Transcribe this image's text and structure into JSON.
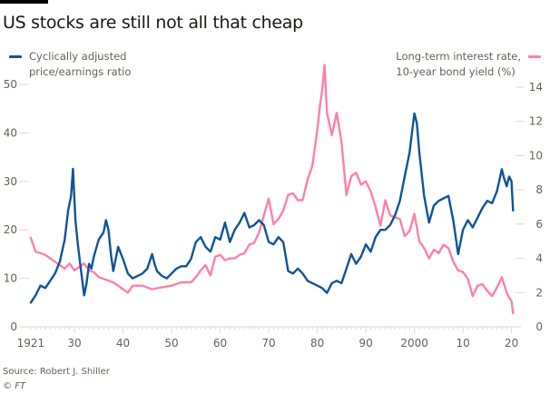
{
  "header": {
    "title": "US stocks are still not all that cheap"
  },
  "legend": {
    "left_label_line1": "Cyclically adjusted",
    "left_label_line2": "price/earnings ratio",
    "right_label_line1": "Long-term interest rate,",
    "right_label_line2": "10-year bond yield (%)"
  },
  "footer": {
    "source": "Source: Robert J. Shiller",
    "copyright_symbol": "©",
    "copyright_org": "FT"
  },
  "colors": {
    "cape": "#0f5499",
    "yield": "#ff7faa",
    "axis": "#e0d6cc",
    "text": "#66605c"
  },
  "chart_data": {
    "type": "line",
    "title": "US stocks are still not all that cheap",
    "xlabel": "",
    "ylabel_left": "Cyclically adjusted price/earnings ratio",
    "ylabel_right": "Long-term interest rate, 10-year bond yield (%)",
    "xlim": [
      1920,
      2021
    ],
    "ylim_left": [
      0,
      50
    ],
    "ylim_right": [
      0,
      14
    ],
    "grid": false,
    "legend_placement": "top-left and top-right",
    "x_tick_values": [
      1921,
      1930,
      1940,
      1950,
      1960,
      1970,
      1980,
      1990,
      2000,
      2010,
      2020
    ],
    "x_tick_labels": [
      "1921",
      "30",
      "40",
      "50",
      "60",
      "70",
      "80",
      "90",
      "2000",
      "10",
      "20"
    ],
    "y_left_ticks": [
      0,
      10,
      20,
      30,
      40,
      50
    ],
    "y_left_tick_labels": [
      "0",
      "10",
      "20",
      "30",
      "40",
      "50"
    ],
    "y_right_ticks": [
      0,
      2,
      4,
      6,
      8,
      10,
      12,
      14
    ],
    "y_right_tick_labels": [
      "0",
      "2",
      "4",
      "6",
      "8",
      "10",
      "12",
      "14"
    ],
    "series": [
      {
        "name": "Cyclically adjusted price/earnings ratio",
        "axis": "left",
        "x": [
          1921,
          1922,
          1923,
          1924,
          1925,
          1926,
          1927,
          1928,
          1928.7,
          1929.3,
          1929.7,
          1930.2,
          1930.7,
          1931.3,
          1932,
          1932.5,
          1933,
          1933.5,
          1934,
          1935,
          1936,
          1936.5,
          1937,
          1937.5,
          1938,
          1938.5,
          1939,
          1940,
          1941,
          1942,
          1943,
          1944,
          1945,
          1946,
          1946.5,
          1947,
          1948,
          1949,
          1950,
          1951,
          1952,
          1953,
          1954,
          1955,
          1956,
          1957,
          1958,
          1959,
          1960,
          1961,
          1962,
          1963,
          1964,
          1965,
          1966,
          1967,
          1968,
          1969,
          1970,
          1971,
          1972,
          1973,
          1974,
          1975,
          1976,
          1977,
          1978,
          1979,
          1980,
          1981,
          1982,
          1983,
          1984,
          1985,
          1986,
          1987,
          1988,
          1989,
          1990,
          1991,
          1992,
          1993,
          1994,
          1995,
          1996,
          1997,
          1998,
          1999,
          1999.5,
          2000,
          2000.5,
          2001,
          2002,
          2003,
          2004,
          2005,
          2006,
          2007,
          2008,
          2009,
          2010,
          2011,
          2012,
          2013,
          2014,
          2015,
          2016,
          2017,
          2018,
          2018.5,
          2019,
          2019.5,
          2020,
          2020.3
        ],
        "values": [
          5.0,
          6.5,
          8.5,
          8.0,
          9.5,
          11.0,
          13.5,
          18.0,
          24.0,
          27.0,
          32.6,
          22.0,
          17.0,
          12.0,
          6.5,
          9.0,
          13.0,
          12.0,
          14.5,
          18.0,
          19.5,
          22.0,
          20.0,
          15.0,
          11.5,
          14.0,
          16.5,
          14.0,
          11.0,
          10.0,
          10.5,
          11.0,
          12.0,
          15.0,
          13.0,
          11.5,
          10.5,
          10.0,
          11.0,
          12.0,
          12.5,
          12.5,
          14.0,
          17.5,
          18.5,
          16.5,
          15.5,
          18.5,
          18.0,
          21.5,
          17.5,
          20.0,
          21.5,
          23.5,
          20.5,
          21.0,
          22.0,
          21.0,
          17.5,
          17.0,
          18.5,
          17.5,
          11.5,
          11.0,
          12.0,
          11.0,
          9.5,
          9.0,
          8.5,
          8.0,
          7.0,
          9.0,
          9.5,
          9.0,
          12.0,
          15.0,
          13.0,
          14.5,
          17.0,
          15.5,
          18.5,
          20.0,
          20.0,
          21.0,
          23.0,
          26.0,
          31.0,
          36.0,
          40.0,
          44.0,
          42.0,
          36.0,
          27.0,
          21.5,
          25.0,
          26.0,
          26.5,
          27.0,
          22.0,
          15.0,
          20.0,
          22.0,
          20.5,
          22.5,
          24.5,
          26.0,
          25.5,
          28.0,
          32.5,
          30.5,
          29.0,
          31.0,
          30.0,
          24.0
        ]
      },
      {
        "name": "Long-term interest rate, 10-year bond yield (%)",
        "axis": "right",
        "x": [
          1921,
          1922,
          1923,
          1924,
          1925,
          1926,
          1927,
          1928,
          1929,
          1930,
          1931,
          1932,
          1933,
          1934,
          1935,
          1936,
          1937,
          1938,
          1939,
          1940,
          1941,
          1942,
          1944,
          1946,
          1948,
          1950,
          1952,
          1954,
          1955,
          1956,
          1957,
          1958,
          1959,
          1960,
          1961,
          1962,
          1963,
          1964,
          1965,
          1966,
          1967,
          1968,
          1969,
          1970,
          1971,
          1972,
          1973,
          1974,
          1975,
          1976,
          1977,
          1978,
          1979,
          1980,
          1980.5,
          1981,
          1981.5,
          1982,
          1983,
          1984,
          1985,
          1986,
          1987,
          1988,
          1989,
          1990,
          1991,
          1992,
          1993,
          1994,
          1995,
          1996,
          1997,
          1998,
          1999,
          2000,
          2001,
          2002,
          2003,
          2004,
          2005,
          2006,
          2007,
          2008,
          2009,
          2010,
          2011,
          2012,
          2013,
          2014,
          2015,
          2016,
          2017,
          2018,
          2019,
          2019.5,
          2020,
          2020.3
        ],
        "values": [
          5.2,
          4.4,
          4.3,
          4.2,
          4.0,
          3.8,
          3.6,
          3.4,
          3.7,
          3.3,
          3.5,
          3.7,
          3.3,
          3.2,
          2.9,
          2.8,
          2.7,
          2.6,
          2.4,
          2.2,
          2.0,
          2.4,
          2.4,
          2.2,
          2.3,
          2.4,
          2.6,
          2.6,
          2.9,
          3.3,
          3.6,
          3.0,
          4.1,
          4.2,
          3.9,
          4.0,
          4.0,
          4.2,
          4.3,
          4.8,
          4.9,
          5.5,
          6.5,
          7.5,
          6.0,
          6.3,
          6.8,
          7.7,
          7.8,
          7.4,
          7.4,
          8.6,
          9.4,
          11.5,
          12.8,
          13.8,
          15.3,
          12.5,
          11.2,
          12.5,
          10.8,
          7.7,
          8.8,
          9.0,
          8.3,
          8.5,
          7.9,
          7.0,
          5.9,
          7.4,
          6.5,
          6.4,
          6.3,
          5.3,
          5.6,
          6.6,
          5.0,
          4.6,
          4.0,
          4.5,
          4.3,
          4.8,
          4.6,
          3.8,
          3.3,
          3.2,
          2.8,
          1.8,
          2.4,
          2.5,
          2.1,
          1.8,
          2.3,
          2.9,
          2.0,
          1.7,
          1.5,
          0.8
        ]
      }
    ]
  }
}
